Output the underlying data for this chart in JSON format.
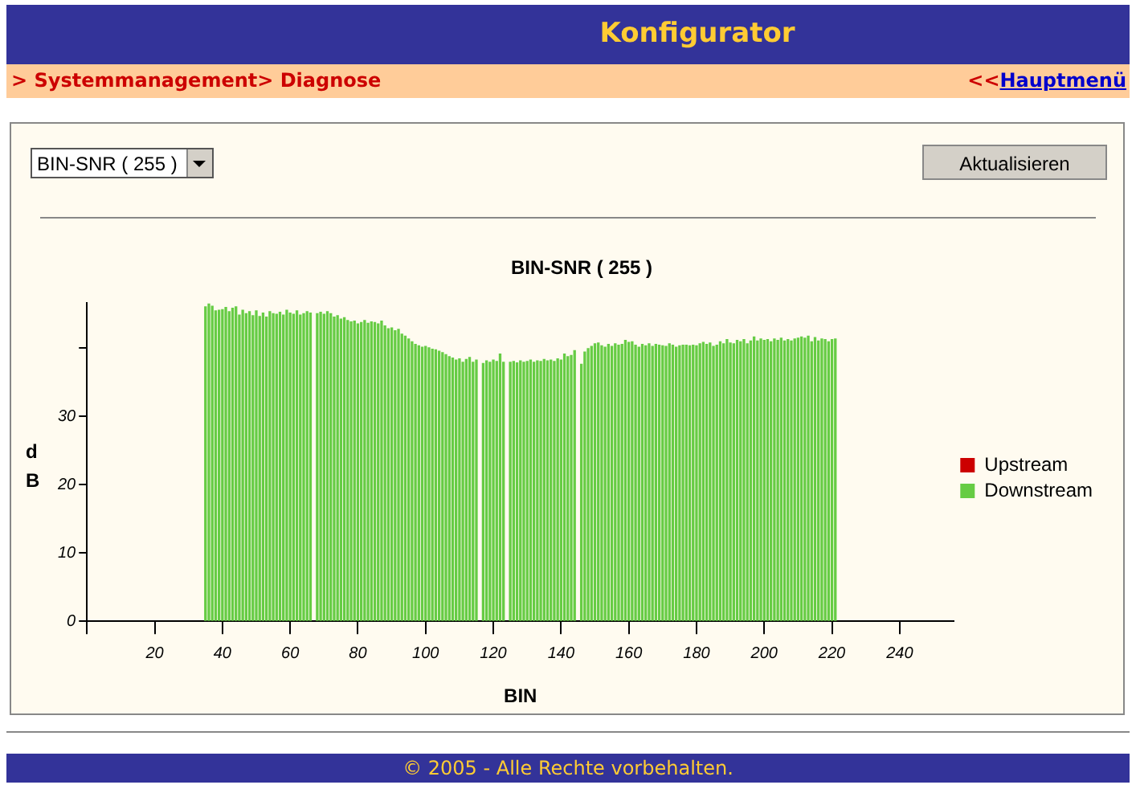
{
  "chart_data": {
    "type": "bar",
    "title": "BIN-SNR ( 255 )",
    "xlabel": "BIN",
    "ylabel": "dB",
    "annotations": [
      "Konfigurator",
      "> Systemmanagement> Diagnose",
      "<<",
      "Hauptmenü",
      "BIN-SNR ( 255 )",
      "Aktualisieren",
      "© 2005 - Alle Rechte vorbehalten."
    ],
    "x": [
      35,
      36,
      37,
      38,
      39,
      40,
      41,
      42,
      43,
      44,
      45,
      46,
      47,
      48,
      49,
      50,
      51,
      52,
      53,
      54,
      55,
      56,
      57,
      58,
      59,
      60,
      61,
      62,
      63,
      64,
      65,
      66,
      67,
      68,
      69,
      70,
      71,
      72,
      73,
      74,
      75,
      76,
      77,
      78,
      79,
      80,
      81,
      82,
      83,
      84,
      85,
      86,
      87,
      88,
      89,
      90,
      91,
      92,
      93,
      94,
      95,
      96,
      97,
      98,
      99,
      100,
      101,
      102,
      103,
      104,
      105,
      106,
      107,
      108,
      109,
      110,
      111,
      112,
      113,
      114,
      115,
      116,
      117,
      118,
      119,
      120,
      121,
      122,
      123,
      124,
      125,
      126,
      127,
      128,
      129,
      130,
      131,
      132,
      133,
      134,
      135,
      136,
      137,
      138,
      139,
      140,
      141,
      142,
      143,
      144,
      145,
      146,
      147,
      148,
      149,
      150,
      151,
      152,
      153,
      154,
      155,
      156,
      157,
      158,
      159,
      160,
      161,
      162,
      163,
      164,
      165,
      166,
      167,
      168,
      169,
      170,
      171,
      172,
      173,
      174,
      175,
      176,
      177,
      178,
      179,
      180,
      181,
      182,
      183,
      184,
      185,
      186,
      187,
      188,
      189,
      190,
      191,
      192,
      193,
      194,
      195,
      196,
      197,
      198,
      199,
      200,
      201,
      202,
      203,
      204,
      205,
      206,
      207,
      208,
      209,
      210,
      211,
      212,
      213,
      214,
      215,
      216,
      217,
      218,
      219,
      220,
      221
    ],
    "series": [
      {
        "name": "Upstream",
        "color": "#cc0000",
        "values": [
          null,
          null,
          null,
          null,
          null,
          null,
          null,
          null,
          null,
          null,
          null,
          null,
          null,
          null,
          null,
          null,
          null,
          null,
          null,
          null,
          null,
          null,
          null,
          null,
          null,
          null,
          null,
          null,
          null,
          null,
          null,
          null,
          null,
          null,
          null,
          null,
          null,
          null,
          null,
          null,
          null,
          null,
          null,
          null,
          null,
          null,
          null,
          null,
          null,
          null,
          null,
          null,
          null,
          null,
          null,
          null,
          null,
          null,
          null,
          null,
          null,
          null,
          null,
          null,
          null,
          null,
          null,
          null,
          null,
          null,
          null,
          null,
          null,
          null,
          null,
          null,
          null,
          null,
          null,
          null,
          null,
          null,
          null,
          null,
          null,
          null,
          null,
          null,
          null,
          null,
          null,
          null,
          null,
          null,
          null,
          null,
          null,
          null,
          null,
          null,
          null,
          null,
          null,
          null,
          null,
          null,
          null,
          null,
          null,
          null,
          null,
          null,
          null,
          null,
          null,
          null,
          null,
          null,
          null,
          null,
          null,
          null,
          null,
          null,
          null,
          null,
          null,
          null,
          null,
          null,
          null,
          null,
          null,
          null,
          null,
          null,
          null,
          null,
          null,
          null,
          null,
          null,
          null,
          null,
          null,
          null,
          null,
          null,
          null,
          null,
          null,
          null,
          null,
          null,
          null,
          null,
          null,
          null,
          null,
          null,
          null,
          null,
          null,
          null,
          null,
          null,
          null,
          null,
          null,
          null,
          null,
          null,
          null,
          null,
          null,
          null,
          null,
          null,
          null,
          null,
          null,
          null,
          null,
          null,
          null,
          null,
          null
        ]
      },
      {
        "name": "Downstream",
        "color": "#66cc44",
        "values": [
          46.0,
          46.4,
          46.1,
          45.4,
          45.5,
          45.6,
          45.9,
          45.3,
          45.8,
          46.0,
          44.8,
          45.5,
          45.0,
          45.3,
          44.7,
          45.4,
          44.6,
          45.1,
          44.5,
          45.3,
          45.0,
          44.9,
          45.2,
          44.8,
          45.5,
          45.1,
          44.9,
          45.4,
          44.8,
          45.0,
          45.3,
          45.1,
          null,
          45.0,
          45.2,
          44.9,
          45.3,
          45.0,
          44.5,
          44.7,
          44.2,
          44.4,
          44.0,
          43.8,
          43.9,
          43.5,
          43.7,
          44.0,
          43.6,
          43.8,
          43.7,
          43.5,
          43.9,
          43.2,
          42.8,
          42.9,
          42.5,
          42.7,
          42.0,
          41.7,
          41.3,
          40.9,
          40.5,
          40.3,
          40.1,
          40.2,
          40.0,
          39.8,
          39.7,
          39.5,
          39.3,
          39.0,
          38.7,
          38.5,
          38.2,
          38.4,
          37.9,
          38.3,
          38.6,
          37.9,
          38.2,
          null,
          37.7,
          38.1,
          37.9,
          38.2,
          38.0,
          39.1,
          37.9,
          null,
          37.9,
          38.0,
          37.8,
          38.1,
          37.9,
          38.0,
          38.2,
          37.9,
          38.1,
          38.0,
          38.3,
          38.1,
          38.2,
          38.0,
          38.4,
          38.2,
          39.1,
          38.7,
          38.9,
          39.6,
          null,
          37.6,
          39.4,
          39.9,
          40.2,
          40.6,
          40.7,
          40.3,
          40.1,
          40.5,
          40.2,
          40.6,
          40.4,
          40.5,
          41.1,
          40.8,
          40.9,
          40.4,
          40.1,
          40.5,
          40.3,
          40.6,
          40.2,
          40.5,
          40.4,
          40.3,
          40.2,
          40.6,
          40.4,
          40.1,
          40.3,
          40.4,
          40.4,
          40.3,
          40.4,
          40.3,
          40.6,
          40.8,
          40.5,
          40.7,
          40.2,
          40.4,
          40.9,
          40.6,
          41.2,
          40.7,
          40.6,
          41.1,
          40.9,
          41.2,
          40.6,
          41.0,
          41.6,
          41.0,
          41.3,
          41.1,
          41.2,
          40.9,
          41.3,
          41.1,
          41.4,
          41.0,
          41.2,
          41.0,
          41.3,
          41.4,
          41.6,
          41.4,
          41.7,
          40.9,
          41.5,
          41.0,
          41.3,
          41.2,
          40.9,
          41.2,
          41.3
        ]
      }
    ],
    "xlim": [
      0,
      256
    ],
    "xticks": [
      {
        "value": 0,
        "label": null
      },
      20,
      40,
      60,
      80,
      100,
      120,
      140,
      160,
      180,
      200,
      220,
      240
    ],
    "ylim": [
      0,
      46.6
    ],
    "yticks": [
      0,
      10,
      20,
      30,
      {
        "value": 40,
        "label": null
      }
    ],
    "grid": false,
    "legend": "right"
  }
}
